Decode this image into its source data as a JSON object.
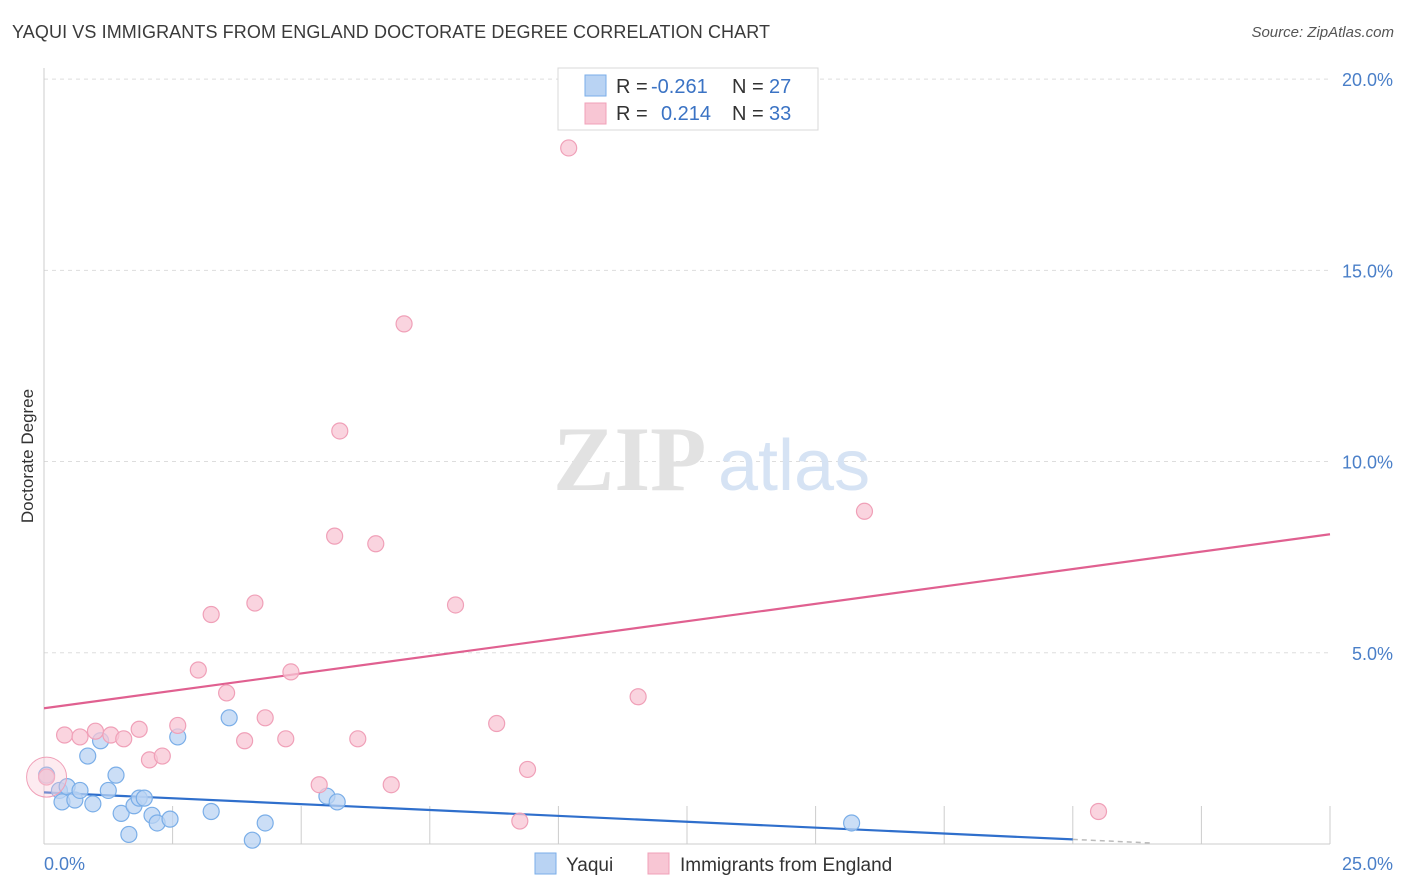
{
  "chart_data": {
    "type": "scatter",
    "title": "YAQUI VS IMMIGRANTS FROM ENGLAND DOCTORATE DEGREE CORRELATION CHART",
    "source": "Source: ZipAtlas.com",
    "ylabel": "Doctorate Degree",
    "xlabel": "",
    "xlim": [
      0,
      25
    ],
    "ylim": [
      0,
      20.5
    ],
    "x_tick_labels": [
      "0.0%",
      "25.0%"
    ],
    "y_ticks": [
      5,
      10,
      15,
      20
    ],
    "y_tick_labels": [
      "5.0%",
      "10.0%",
      "15.0%",
      "20.0%"
    ],
    "watermark": "ZIPatlas",
    "legend": {
      "rows": [
        {
          "r_label": "R =",
          "r_value": "-0.261",
          "n_label": "N =",
          "n_value": "27"
        },
        {
          "r_label": "R =",
          "r_value": "0.214",
          "n_label": "N =",
          "n_value": "33"
        }
      ]
    },
    "series": [
      {
        "name": "Yaqui",
        "color": "#7aaee8",
        "fill": "#b9d3f3",
        "line_color": "#2f6fcc",
        "trend": {
          "x0": 0,
          "y0": 1.35,
          "x1": 20,
          "y1": 0.12,
          "dash_to": 21.5
        },
        "points": [
          [
            0.05,
            1.8
          ],
          [
            0.3,
            1.4
          ],
          [
            0.35,
            1.1
          ],
          [
            0.45,
            1.5
          ],
          [
            0.6,
            1.15
          ],
          [
            0.7,
            1.4
          ],
          [
            0.85,
            2.3
          ],
          [
            0.95,
            1.05
          ],
          [
            1.1,
            2.7
          ],
          [
            1.25,
            1.4
          ],
          [
            1.4,
            1.8
          ],
          [
            1.5,
            0.8
          ],
          [
            1.65,
            0.25
          ],
          [
            1.75,
            1.0
          ],
          [
            1.85,
            1.2
          ],
          [
            1.95,
            1.2
          ],
          [
            2.1,
            0.75
          ],
          [
            2.2,
            0.55
          ],
          [
            2.45,
            0.65
          ],
          [
            2.6,
            2.8
          ],
          [
            3.25,
            0.85
          ],
          [
            3.6,
            3.3
          ],
          [
            4.05,
            0.1
          ],
          [
            4.3,
            0.55
          ],
          [
            5.5,
            1.25
          ],
          [
            5.7,
            1.1
          ],
          [
            15.7,
            0.55
          ]
        ]
      },
      {
        "name": "Immigrants from England",
        "color": "#f0a0b8",
        "fill": "#f8c6d4",
        "line_color": "#e06090",
        "trend": {
          "x0": 0,
          "y0": 3.55,
          "x1": 25,
          "y1": 8.1
        },
        "points": [
          [
            0.05,
            1.75
          ],
          [
            0.4,
            2.85
          ],
          [
            0.7,
            2.8
          ],
          [
            1.0,
            2.95
          ],
          [
            1.3,
            2.85
          ],
          [
            1.55,
            2.75
          ],
          [
            1.85,
            3.0
          ],
          [
            2.05,
            2.2
          ],
          [
            2.3,
            2.3
          ],
          [
            2.6,
            3.1
          ],
          [
            3.0,
            4.55
          ],
          [
            3.25,
            6.0
          ],
          [
            3.55,
            3.95
          ],
          [
            3.9,
            2.7
          ],
          [
            4.1,
            6.3
          ],
          [
            4.3,
            3.3
          ],
          [
            4.7,
            2.75
          ],
          [
            4.8,
            4.5
          ],
          [
            5.35,
            1.55
          ],
          [
            5.65,
            8.05
          ],
          [
            5.75,
            10.8
          ],
          [
            6.1,
            2.75
          ],
          [
            6.45,
            7.85
          ],
          [
            6.75,
            1.55
          ],
          [
            7.0,
            13.6
          ],
          [
            8.0,
            6.25
          ],
          [
            8.8,
            3.15
          ],
          [
            9.25,
            0.6
          ],
          [
            9.4,
            1.95
          ],
          [
            10.2,
            18.2
          ],
          [
            11.55,
            3.85
          ],
          [
            15.95,
            8.7
          ],
          [
            20.5,
            0.85
          ]
        ]
      }
    ]
  }
}
